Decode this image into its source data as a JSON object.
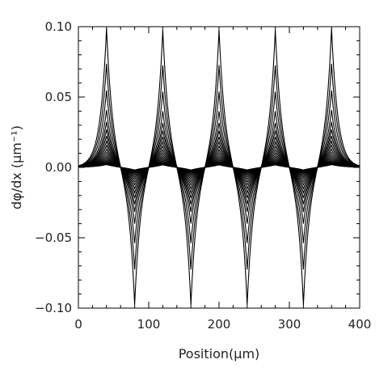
{
  "chart_data": {
    "type": "line",
    "title": "",
    "xlabel": "Position(μm)",
    "ylabel": "dφ/dx (μm⁻¹)",
    "xlim": [
      0,
      400
    ],
    "ylim": [
      -0.1,
      0.1
    ],
    "xticks": [
      0,
      100,
      200,
      300,
      400
    ],
    "yticks": [
      -0.1,
      -0.05,
      0.0,
      0.05,
      0.1
    ],
    "xtick_labels": [
      "0",
      "100",
      "200",
      "300",
      "400"
    ],
    "ytick_labels": [
      "−0.10",
      "−0.05",
      "0.00",
      "0.05",
      "0.10"
    ],
    "grid": false,
    "legend": "none",
    "line_color": "#000000",
    "positive_peak_positions": [
      40,
      120,
      200,
      280,
      360
    ],
    "negative_peak_positions": [
      80,
      160,
      240,
      320
    ],
    "family_peak_amplitudes": [
      0.1,
      0.0747,
      0.0557,
      0.0416,
      0.0331,
      0.0276,
      0.0231,
      0.0193,
      0.0162,
      0.0135,
      0.0113,
      0.0094,
      0.0079,
      0.0066,
      0.0055,
      0.0046,
      0.0038,
      0.0032,
      0.0027,
      0.0022
    ],
    "family_decay_lengths": [
      9,
      9.4,
      9.8,
      10.2,
      10.6,
      11,
      11.4,
      11.8,
      12.2,
      12.6,
      13,
      13.4,
      13.8,
      14.2,
      14.6,
      15,
      15.4,
      15.8,
      16.2,
      16.6
    ]
  }
}
